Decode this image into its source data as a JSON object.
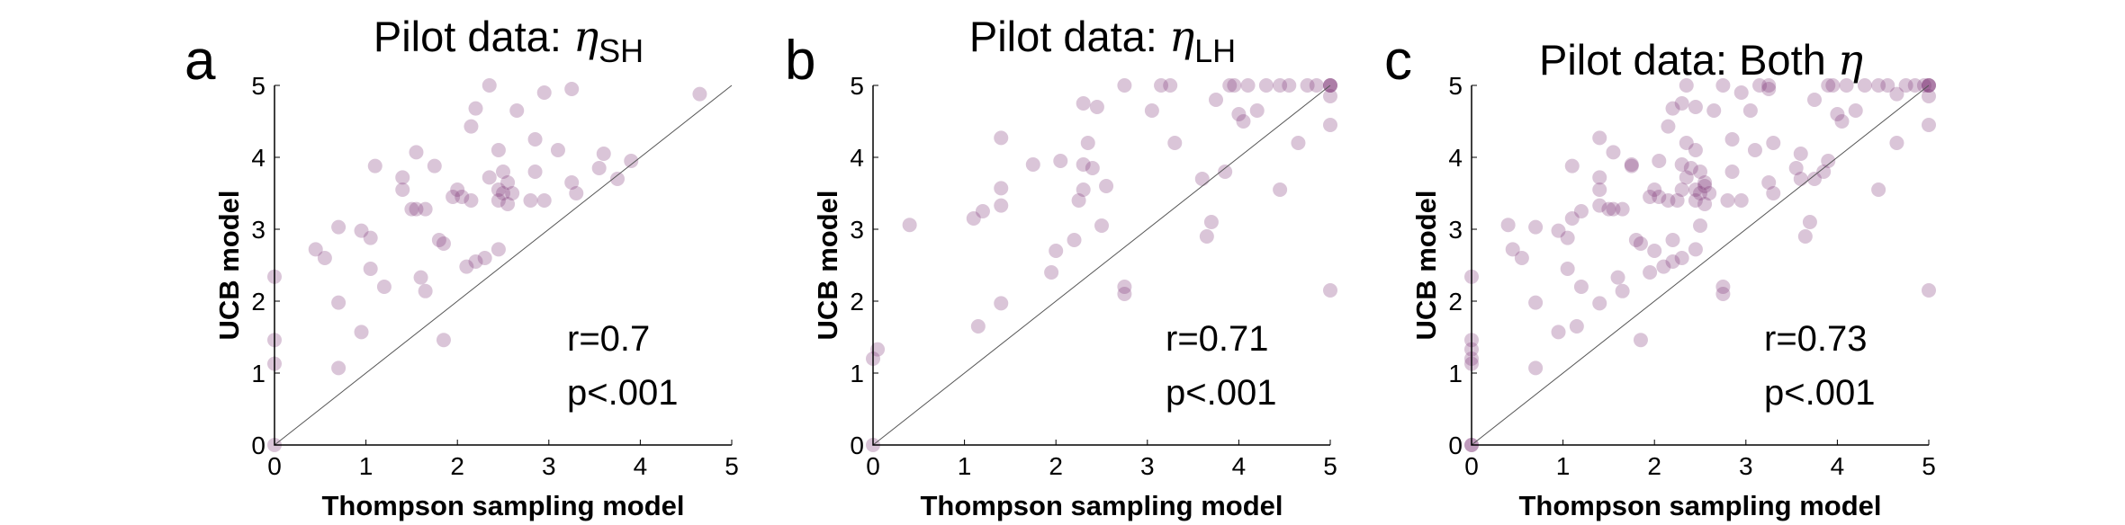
{
  "colors": {
    "point": "#7b2f72",
    "axis": "#000000",
    "diagonal": "#555555"
  },
  "chart_data": [
    {
      "type": "scatter",
      "panel_letter": "a",
      "title": "Pilot data: ",
      "title_symbol": "η",
      "title_subscript": "SH",
      "xlabel": "Thompson sampling model",
      "ylabel": "UCB model",
      "xlim": [
        0,
        5
      ],
      "ylim": [
        0,
        5
      ],
      "xticks": [
        "0",
        "1",
        "2",
        "3",
        "4",
        "5"
      ],
      "yticks": [
        "0",
        "1",
        "2",
        "3",
        "4",
        "5"
      ],
      "grid": false,
      "reference_line": "y=x",
      "annotation_r": "r=0.7",
      "annotation_p": "p<.001",
      "points": [
        [
          0,
          0
        ],
        [
          0,
          1.13
        ],
        [
          0,
          1.46
        ],
        [
          0,
          2.34
        ],
        [
          0.45,
          2.72
        ],
        [
          0.55,
          2.6
        ],
        [
          0.7,
          3.03
        ],
        [
          0.7,
          1.98
        ],
        [
          0.7,
          1.07
        ],
        [
          0.95,
          2.98
        ],
        [
          0.95,
          1.57
        ],
        [
          1.05,
          2.45
        ],
        [
          1.05,
          2.88
        ],
        [
          1.1,
          3.88
        ],
        [
          1.2,
          2.2
        ],
        [
          1.4,
          3.72
        ],
        [
          1.4,
          3.55
        ],
        [
          1.5,
          3.28
        ],
        [
          1.55,
          3.28
        ],
        [
          1.55,
          4.07
        ],
        [
          1.6,
          2.33
        ],
        [
          1.65,
          3.28
        ],
        [
          1.65,
          2.14
        ],
        [
          1.75,
          3.88
        ],
        [
          1.8,
          2.85
        ],
        [
          1.85,
          1.46
        ],
        [
          1.85,
          2.8
        ],
        [
          1.95,
          3.45
        ],
        [
          2,
          3.55
        ],
        [
          2.05,
          3.45
        ],
        [
          2.1,
          2.48
        ],
        [
          2.15,
          3.4
        ],
        [
          2.15,
          4.43
        ],
        [
          2.2,
          4.68
        ],
        [
          2.2,
          2.55
        ],
        [
          2.3,
          2.6
        ],
        [
          2.35,
          3.72
        ],
        [
          2.35,
          5
        ],
        [
          2.45,
          2.72
        ],
        [
          2.45,
          3.4
        ],
        [
          2.45,
          3.55
        ],
        [
          2.45,
          4.1
        ],
        [
          2.5,
          3.5
        ],
        [
          2.5,
          3.8
        ],
        [
          2.55,
          3.65
        ],
        [
          2.55,
          3.35
        ],
        [
          2.6,
          3.5
        ],
        [
          2.65,
          4.65
        ],
        [
          2.8,
          3.4
        ],
        [
          2.85,
          4.25
        ],
        [
          2.85,
          3.8
        ],
        [
          2.95,
          4.9
        ],
        [
          2.95,
          3.4
        ],
        [
          3.1,
          4.1
        ],
        [
          3.25,
          3.65
        ],
        [
          3.25,
          4.95
        ],
        [
          3.3,
          3.5
        ],
        [
          3.55,
          3.85
        ],
        [
          3.6,
          4.05
        ],
        [
          3.75,
          3.7
        ],
        [
          3.9,
          3.95
        ],
        [
          4.65,
          4.88
        ]
      ]
    },
    {
      "type": "scatter",
      "panel_letter": "b",
      "title": "Pilot data: ",
      "title_symbol": "η",
      "title_subscript": "LH",
      "xlabel": "Thompson sampling model",
      "ylabel": "UCB model",
      "xlim": [
        0,
        5
      ],
      "ylim": [
        0,
        5
      ],
      "xticks": [
        "0",
        "1",
        "2",
        "3",
        "4",
        "5"
      ],
      "yticks": [
        "0",
        "1",
        "2",
        "3",
        "4",
        "5"
      ],
      "grid": false,
      "reference_line": "y=x",
      "annotation_r": "r=0.71",
      "annotation_p": "p<.001",
      "points": [
        [
          0,
          0
        ],
        [
          0,
          1.2
        ],
        [
          0.05,
          1.33
        ],
        [
          0.4,
          3.06
        ],
        [
          1.1,
          3.15
        ],
        [
          1.15,
          1.65
        ],
        [
          1.2,
          3.25
        ],
        [
          1.4,
          1.97
        ],
        [
          1.4,
          3.33
        ],
        [
          1.4,
          3.57
        ],
        [
          1.4,
          4.27
        ],
        [
          1.75,
          3.9
        ],
        [
          1.95,
          2.4
        ],
        [
          2,
          2.7
        ],
        [
          2.05,
          3.95
        ],
        [
          2.2,
          2.85
        ],
        [
          2.25,
          3.4
        ],
        [
          2.3,
          3.55
        ],
        [
          2.3,
          4.75
        ],
        [
          2.3,
          3.9
        ],
        [
          2.35,
          4.2
        ],
        [
          2.4,
          3.85
        ],
        [
          2.45,
          4.7
        ],
        [
          2.5,
          3.05
        ],
        [
          2.55,
          3.6
        ],
        [
          2.75,
          2.1
        ],
        [
          2.75,
          2.2
        ],
        [
          2.75,
          5
        ],
        [
          3.05,
          4.65
        ],
        [
          3.15,
          5
        ],
        [
          3.25,
          5
        ],
        [
          3.3,
          4.2
        ],
        [
          3.6,
          3.7
        ],
        [
          3.65,
          2.9
        ],
        [
          3.7,
          3.1
        ],
        [
          3.75,
          4.8
        ],
        [
          3.85,
          3.8
        ],
        [
          3.9,
          5
        ],
        [
          3.95,
          5
        ],
        [
          4,
          4.6
        ],
        [
          4.05,
          4.5
        ],
        [
          4.1,
          5
        ],
        [
          4.2,
          4.65
        ],
        [
          4.3,
          5
        ],
        [
          4.45,
          5
        ],
        [
          4.45,
          3.55
        ],
        [
          4.55,
          5
        ],
        [
          4.65,
          4.2
        ],
        [
          4.75,
          5
        ],
        [
          4.85,
          5
        ],
        [
          5,
          5
        ],
        [
          5,
          5
        ],
        [
          5,
          5
        ],
        [
          5,
          4.85
        ],
        [
          5,
          4.45
        ],
        [
          5,
          2.15
        ]
      ]
    },
    {
      "type": "scatter",
      "panel_letter": "c",
      "title": "Pilot data: Both ",
      "title_symbol": "η",
      "title_subscript": "",
      "xlabel": "Thompson sampling model",
      "ylabel": "UCB model",
      "xlim": [
        0,
        5
      ],
      "ylim": [
        0,
        5
      ],
      "xticks": [
        "0",
        "1",
        "2",
        "3",
        "4",
        "5"
      ],
      "yticks": [
        "0",
        "1",
        "2",
        "3",
        "4",
        "5"
      ],
      "grid": false,
      "reference_line": "y=x",
      "annotation_r": "r=0.73",
      "annotation_p": "p<.001",
      "points": [
        [
          0,
          0
        ],
        [
          0,
          0
        ],
        [
          0,
          1.13
        ],
        [
          0,
          1.2
        ],
        [
          0,
          1.33
        ],
        [
          0,
          1.46
        ],
        [
          0,
          2.34
        ],
        [
          0.4,
          3.06
        ],
        [
          0.45,
          2.72
        ],
        [
          0.55,
          2.6
        ],
        [
          0.7,
          3.03
        ],
        [
          0.7,
          1.98
        ],
        [
          0.7,
          1.07
        ],
        [
          0.95,
          2.98
        ],
        [
          0.95,
          1.57
        ],
        [
          1.05,
          2.45
        ],
        [
          1.05,
          2.88
        ],
        [
          1.1,
          3.88
        ],
        [
          1.1,
          3.15
        ],
        [
          1.15,
          1.65
        ],
        [
          1.2,
          2.2
        ],
        [
          1.2,
          3.25
        ],
        [
          1.4,
          3.72
        ],
        [
          1.4,
          3.55
        ],
        [
          1.4,
          1.97
        ],
        [
          1.4,
          3.33
        ],
        [
          1.4,
          4.27
        ],
        [
          1.5,
          3.28
        ],
        [
          1.55,
          3.28
        ],
        [
          1.55,
          4.07
        ],
        [
          1.6,
          2.33
        ],
        [
          1.65,
          3.28
        ],
        [
          1.65,
          2.14
        ],
        [
          1.75,
          3.88
        ],
        [
          1.75,
          3.9
        ],
        [
          1.8,
          2.85
        ],
        [
          1.85,
          1.46
        ],
        [
          1.85,
          2.8
        ],
        [
          1.95,
          3.45
        ],
        [
          1.95,
          2.4
        ],
        [
          2,
          3.55
        ],
        [
          2,
          2.7
        ],
        [
          2.05,
          3.45
        ],
        [
          2.05,
          3.95
        ],
        [
          2.1,
          2.48
        ],
        [
          2.15,
          3.4
        ],
        [
          2.15,
          4.43
        ],
        [
          2.2,
          4.68
        ],
        [
          2.2,
          2.55
        ],
        [
          2.2,
          2.85
        ],
        [
          2.25,
          3.4
        ],
        [
          2.3,
          2.6
        ],
        [
          2.3,
          3.55
        ],
        [
          2.3,
          4.75
        ],
        [
          2.3,
          3.9
        ],
        [
          2.35,
          3.72
        ],
        [
          2.35,
          5
        ],
        [
          2.35,
          4.2
        ],
        [
          2.4,
          3.85
        ],
        [
          2.45,
          2.72
        ],
        [
          2.45,
          3.4
        ],
        [
          2.45,
          3.55
        ],
        [
          2.45,
          4.1
        ],
        [
          2.45,
          4.7
        ],
        [
          2.5,
          3.5
        ],
        [
          2.5,
          3.8
        ],
        [
          2.5,
          3.05
        ],
        [
          2.55,
          3.65
        ],
        [
          2.55,
          3.35
        ],
        [
          2.55,
          3.6
        ],
        [
          2.6,
          3.5
        ],
        [
          2.65,
          4.65
        ],
        [
          2.75,
          2.1
        ],
        [
          2.75,
          2.2
        ],
        [
          2.75,
          5
        ],
        [
          2.8,
          3.4
        ],
        [
          2.85,
          4.25
        ],
        [
          2.85,
          3.8
        ],
        [
          2.95,
          4.9
        ],
        [
          2.95,
          3.4
        ],
        [
          3.05,
          4.65
        ],
        [
          3.1,
          4.1
        ],
        [
          3.15,
          5
        ],
        [
          3.25,
          3.65
        ],
        [
          3.25,
          4.95
        ],
        [
          3.25,
          5
        ],
        [
          3.3,
          3.5
        ],
        [
          3.3,
          4.2
        ],
        [
          3.55,
          3.85
        ],
        [
          3.6,
          4.05
        ],
        [
          3.6,
          3.7
        ],
        [
          3.65,
          2.9
        ],
        [
          3.7,
          3.1
        ],
        [
          3.75,
          3.7
        ],
        [
          3.75,
          4.8
        ],
        [
          3.85,
          3.8
        ],
        [
          3.9,
          3.95
        ],
        [
          3.9,
          5
        ],
        [
          3.95,
          5
        ],
        [
          4,
          4.6
        ],
        [
          4.05,
          4.5
        ],
        [
          4.1,
          5
        ],
        [
          4.2,
          4.65
        ],
        [
          4.3,
          5
        ],
        [
          4.45,
          5
        ],
        [
          4.45,
          3.55
        ],
        [
          4.55,
          5
        ],
        [
          4.65,
          4.88
        ],
        [
          4.65,
          4.2
        ],
        [
          4.75,
          5
        ],
        [
          4.85,
          5
        ],
        [
          4.95,
          5
        ],
        [
          5,
          5
        ],
        [
          5,
          5
        ],
        [
          5,
          5
        ],
        [
          5,
          4.85
        ],
        [
          5,
          4.45
        ],
        [
          5,
          2.15
        ]
      ]
    }
  ]
}
